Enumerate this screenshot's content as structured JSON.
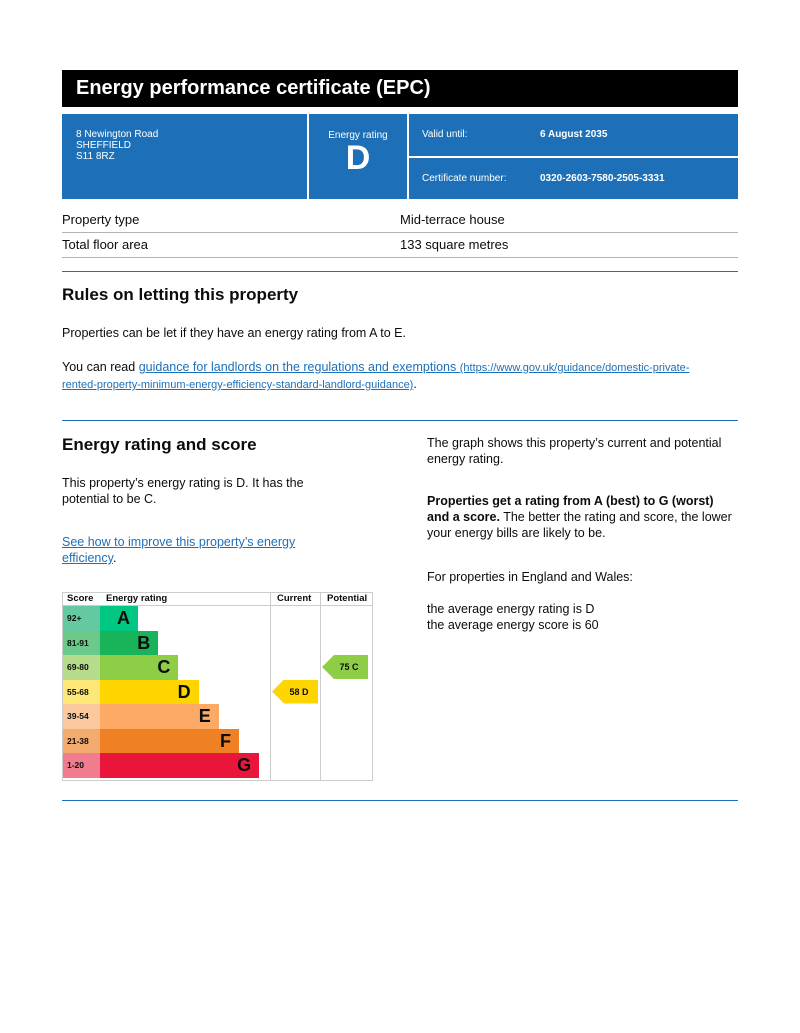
{
  "title": "Energy performance certificate (EPC)",
  "address": {
    "line1": "8 Newington Road",
    "line2": "SHEFFIELD",
    "line3": "S11 8RZ"
  },
  "rating": {
    "label": "Energy rating",
    "value": "D"
  },
  "valid": {
    "label": "Valid until:",
    "value": "6 August 2035"
  },
  "certificate": {
    "label": "Certificate number:",
    "value": "0320-2603-7580-2505-3331"
  },
  "property": [
    {
      "label": "Property type",
      "value": "Mid-terrace house"
    },
    {
      "label": "Total floor area",
      "value": "133 square metres"
    }
  ],
  "rules": {
    "heading": "Rules on letting this property",
    "p1": "Properties can be let if they have an energy rating from A to E.",
    "p2_prefix": "You can read ",
    "link": "guidance for landlords on the regulations and exemptions",
    "link_url": "(https://www.gov.uk/guidance/domestic-private-rented-property-minimum-energy-efficiency-standard-landlord-guidance)",
    "p2_suffix": "."
  },
  "score_section": {
    "heading": "Energy rating and score",
    "p1": "This property’s energy rating is D. It has the potential to be C.",
    "link": "See how to improve this property’s energy efficiency",
    "link_suffix": ".",
    "r1": "The graph shows this property’s current and potential energy rating.",
    "r2_bold": "Properties get a rating from A (best) to G (worst) and a score.",
    "r2_rest": " The better the rating and score, the lower your energy bills are likely to be.",
    "r3": "For properties in England and Wales:",
    "r4": "the average energy rating is D",
    "r5": "the average energy score is 60"
  },
  "chart_data": {
    "type": "table",
    "headers": [
      "Score",
      "Energy rating",
      "Current",
      "Potential"
    ],
    "bands": [
      {
        "letter": "A",
        "range": "92+",
        "color": "#00c781",
        "light": "#64c9a0"
      },
      {
        "letter": "B",
        "range": "81-91",
        "color": "#19b459",
        "light": "#6cc98c"
      },
      {
        "letter": "C",
        "range": "69-80",
        "color": "#8dce46",
        "light": "#b5dc8a"
      },
      {
        "letter": "D",
        "range": "55-68",
        "color": "#ffd500",
        "light": "#fde776"
      },
      {
        "letter": "E",
        "range": "39-54",
        "color": "#fcaa65",
        "light": "#fcc89d"
      },
      {
        "letter": "F",
        "range": "21-38",
        "color": "#ef8023",
        "light": "#f3ab6e"
      },
      {
        "letter": "G",
        "range": "1-20",
        "color": "#e9153b",
        "light": "#f07c8e"
      }
    ],
    "current": {
      "score": 58,
      "letter": "D",
      "label": "58  D"
    },
    "potential": {
      "score": 75,
      "letter": "C",
      "label": "75  C"
    }
  }
}
